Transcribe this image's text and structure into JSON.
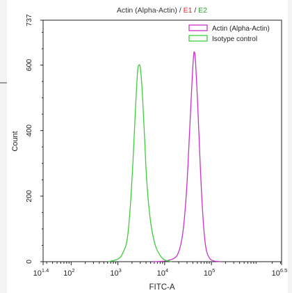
{
  "chart_data": {
    "type": "line",
    "title_parts": [
      {
        "text": "Actin (Alpha-Actin) / ",
        "color": "#333333"
      },
      {
        "text": "E1",
        "color": "#e8202a"
      },
      {
        "text": " / ",
        "color": "#333333"
      },
      {
        "text": "E2",
        "color": "#2aa52a"
      }
    ],
    "xlabel": "FITC-A",
    "ylabel": "Count",
    "x_scale": "log10",
    "xlim": [
      1.4,
      6.5
    ],
    "ylim": [
      0,
      737
    ],
    "x_ticks": [
      {
        "base": "10",
        "exp": "1.4",
        "at": 1.4
      },
      {
        "base": "10",
        "exp": "2",
        "at": 2
      },
      {
        "base": "10",
        "exp": "3",
        "at": 3
      },
      {
        "base": "10",
        "exp": "4",
        "at": 4
      },
      {
        "base": "10",
        "exp": "5",
        "at": 5
      },
      {
        "base": "10",
        "exp": "6.5",
        "at": 6.5
      }
    ],
    "y_ticks": [
      {
        "label": "0",
        "value": 0
      },
      {
        "label": "200",
        "value": 200
      },
      {
        "label": "400",
        "value": 400
      },
      {
        "label": "600",
        "value": 600
      },
      {
        "label": "737",
        "value": 737
      }
    ],
    "legend_position": "top-right",
    "series": [
      {
        "name": "Actin (Alpha-Actin)",
        "color": "#c832c8",
        "x": [
          3.75,
          4.0,
          4.2,
          4.3,
          4.38,
          4.45,
          4.5,
          4.55,
          4.6,
          4.63,
          4.66,
          4.7,
          4.75,
          4.8,
          4.85,
          4.9,
          5.0,
          5.2
        ],
        "y": [
          0,
          2,
          10,
          30,
          80,
          180,
          300,
          450,
          590,
          640,
          610,
          500,
          330,
          180,
          80,
          30,
          5,
          0
        ]
      },
      {
        "name": "Isotype control",
        "color": "#3ccc3c",
        "x": [
          2.8,
          3.0,
          3.1,
          3.2,
          3.27,
          3.33,
          3.38,
          3.42,
          3.45,
          3.48,
          3.52,
          3.57,
          3.62,
          3.7,
          3.8,
          3.9,
          4.0,
          4.15
        ],
        "y": [
          0,
          8,
          25,
          70,
          180,
          330,
          480,
          580,
          600,
          590,
          520,
          380,
          240,
          120,
          50,
          20,
          5,
          0
        ]
      }
    ]
  }
}
